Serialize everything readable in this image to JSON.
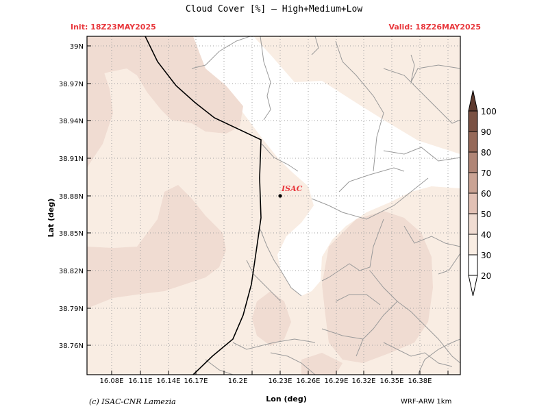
{
  "title": "Cloud Cover [%] — High+Medium+Low",
  "init_label": "Init: 18Z23MAY2025",
  "valid_label": "Valid: 18Z26MAY2025",
  "credit": "(c) ISAC-CNR Lamezia",
  "model": "WRF-ARW 1km",
  "axes": {
    "xlabel": "Lon (deg)",
    "ylabel": "Lat (deg)",
    "x_ticks": [
      "16.08E",
      "16.11E",
      "16.14E",
      "16.17E",
      "16.2E",
      "16.23E",
      "16.26E",
      "16.29E",
      "16.32E",
      "16.35E",
      "16.38E"
    ],
    "y_ticks": [
      "39N",
      "38.97N",
      "38.94N",
      "38.91N",
      "38.88N",
      "38.85N",
      "38.82N",
      "38.79N",
      "38.76N"
    ]
  },
  "marker": {
    "label": "ISAC",
    "color": "#e8383d"
  },
  "colorbar": {
    "levels": [
      "20",
      "30",
      "40",
      "50",
      "60",
      "70",
      "80",
      "90",
      "100"
    ],
    "colors": [
      "#ffffff",
      "#f9ede3",
      "#f0dcd2",
      "#e2c1b5",
      "#caa394",
      "#b08576",
      "#966959",
      "#7a5143",
      "#5e3a2e"
    ]
  }
}
